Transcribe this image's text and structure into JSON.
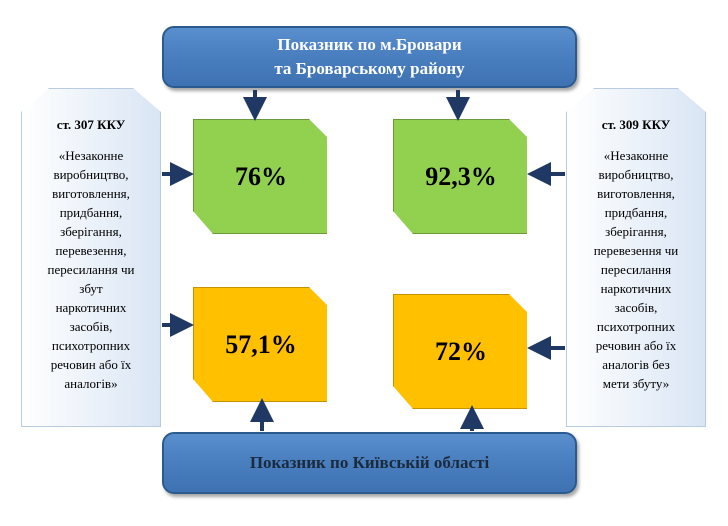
{
  "top_banner": {
    "line1": "Показник по м.Бровари",
    "line2": "та Броварському району"
  },
  "bottom_banner": {
    "text": "Показник по Київській області"
  },
  "left_note": {
    "article": "ст. 307 ККУ",
    "lines": [
      "«Незаконне",
      "виробництво,",
      "виготовлення,",
      "придбання,",
      "зберігання,",
      "перевезення,",
      "пересилання чи",
      "збут",
      "наркотичних",
      "засобів,",
      "психотропних",
      "речовин або їх",
      "аналогів»"
    ]
  },
  "right_note": {
    "article": "ст. 309 ККУ",
    "lines": [
      "«Незаконне",
      "виробництво,",
      "виготовлення,",
      "придбання,",
      "зберігання,",
      "перевезення чи",
      "пересилання",
      "наркотичних",
      "засобів,",
      "психотропних",
      "речовин або їх",
      "аналогів без",
      "мети збуту»"
    ]
  },
  "cards": {
    "top_left": "76%",
    "top_right": "92,3%",
    "bottom_left": "57,1%",
    "bottom_right": "72%"
  },
  "colors": {
    "banner": "#4a7fc0",
    "green": "#92d050",
    "orange": "#ffc000",
    "arrow": "#1f3864"
  }
}
